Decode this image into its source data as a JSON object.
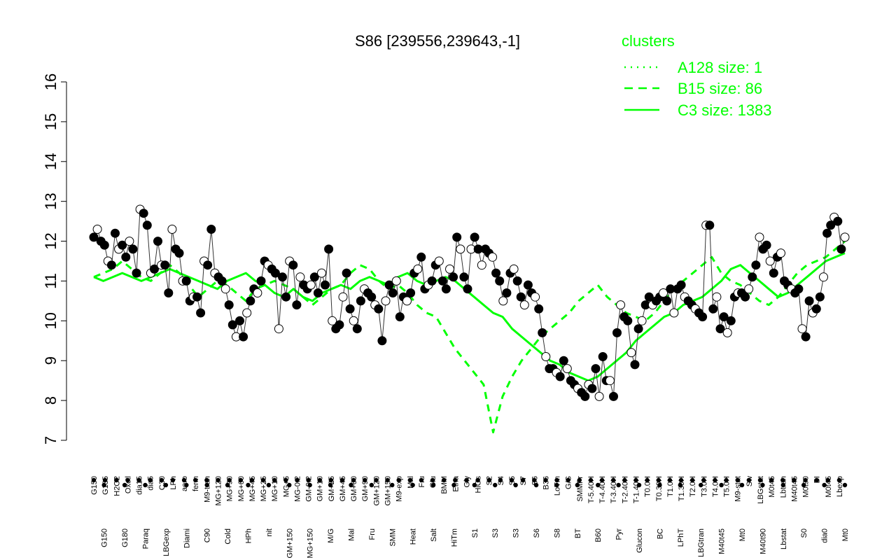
{
  "chart_data": {
    "type": "line",
    "title": "S86 [239556,239643,-1]",
    "ylim": [
      7,
      16
    ],
    "y_ticks": [
      7,
      8,
      9,
      10,
      11,
      12,
      13,
      14,
      15,
      16
    ],
    "grid": false,
    "legend_position": "top-right",
    "legend": {
      "title": "clusters",
      "entries": [
        {
          "label": "A128 size: 1",
          "style": "dotted"
        },
        {
          "label": "B15 size: 86",
          "style": "dashed"
        },
        {
          "label": "C3 size: 1383",
          "style": "solid"
        }
      ]
    },
    "x_labels_top": [
      "G150",
      "G135",
      "H2O2",
      "Oxctl",
      "dia15",
      "dia5",
      "C30",
      "LPh",
      "aero",
      "ferm",
      "M9-tran",
      "MG+120",
      "MG+90",
      "MG+60",
      "MG+45",
      "MG+25",
      "MG+10",
      "MG+5",
      "MG-0.2",
      "GM-0.2",
      "GM+10",
      "GM+25",
      "GM+45",
      "GM+60",
      "GM+90",
      "GM+120",
      "GM+150",
      "M9-exp",
      "Mal",
      "Fru",
      "Glu",
      "BMM",
      "Etha",
      "Gly",
      "HiOs",
      "S2",
      "S4",
      "S5",
      "S7",
      "S6",
      "B36",
      "LoTm",
      "G/S",
      "SMMPr",
      "T-5.40H",
      "T-4.40H",
      "T-3.40H",
      "T-2.40H",
      "T-1.40H",
      "T0.0H",
      "T0.30H",
      "T1.0H",
      "T1.30H",
      "T2.0H",
      "T3.0H",
      "T4.0H",
      "T5.0H",
      "M9-stat",
      "Sw",
      "LBGstat",
      "M0t45",
      "Lbtran",
      "M40t45",
      "M0t90",
      "BI",
      "M0t45",
      "Lbexp"
    ],
    "x_labels_bottom": [
      "G150",
      "G180",
      "Paraq",
      "LBGexp",
      "Diami",
      "C90",
      "Cold",
      "HPh",
      "nit",
      "GM+150",
      "MG+150",
      "M/G",
      "Mal",
      "Fru",
      "SMM",
      "Heat",
      "Salt",
      "HiTm",
      "S1",
      "S3",
      "S3",
      "S6",
      "S8",
      "BT",
      "B60",
      "Pyr",
      "Glucon",
      "BC",
      "LPhT",
      "LBGtran",
      "M40t45",
      "Mt0",
      "M40t90",
      "Lbstat",
      "S0",
      "dia0",
      "Mt0"
    ],
    "series": [
      {
        "name": "C3 size: 1383",
        "style": "solid",
        "values": [
          11.1,
          11.0,
          11.1,
          11.2,
          11.1,
          11.0,
          11.1,
          11.2,
          11.3,
          11.2,
          11.1,
          11.0,
          10.9,
          10.8,
          11.0,
          11.1,
          11.2,
          11.0,
          10.9,
          10.7,
          10.6,
          10.8,
          10.6,
          10.5,
          10.7,
          10.8,
          10.9,
          10.8,
          11.0,
          11.1,
          11.0,
          10.9,
          11.1,
          11.2,
          11.0,
          10.9,
          11.0,
          11.1,
          11.0,
          10.8,
          10.6,
          10.4,
          10.2,
          10.1,
          9.8,
          9.6,
          9.4,
          9.2,
          9.0,
          8.9,
          8.7,
          8.6,
          8.5,
          8.6,
          8.8,
          9.0,
          9.2,
          9.5,
          9.7,
          9.9,
          10.1,
          10.2,
          10.4,
          10.5,
          10.6,
          10.8,
          11.0,
          11.3,
          11.4,
          11.2,
          11.0,
          10.8,
          10.6,
          10.7,
          10.9,
          11.1,
          11.3,
          11.5,
          11.6,
          11.7
        ]
      },
      {
        "name": "B15 size: 86",
        "style": "dashed",
        "values": [
          11.1,
          11.2,
          11.3,
          11.5,
          11.3,
          11.1,
          11.0,
          11.2,
          11.4,
          11.2,
          10.9,
          10.6,
          10.8,
          11.0,
          10.9,
          10.7,
          10.5,
          10.8,
          10.9,
          11.0,
          10.9,
          10.8,
          10.6,
          10.4,
          10.6,
          10.8,
          10.9,
          11.2,
          11.4,
          11.3,
          11.0,
          10.8,
          10.9,
          10.7,
          10.4,
          10.2,
          10.1,
          9.7,
          9.3,
          9.0,
          8.7,
          8.4,
          7.2,
          8.1,
          8.6,
          9.0,
          9.3,
          9.6,
          9.8,
          10.0,
          10.2,
          10.5,
          10.7,
          10.9,
          10.6,
          10.4,
          10.2,
          10.1,
          10.0,
          10.2,
          10.5,
          10.8,
          11.0,
          11.2,
          11.4,
          11.6,
          11.2,
          11.0,
          10.9,
          10.7,
          10.5,
          10.4,
          10.6,
          10.9,
          11.2,
          11.4,
          11.5,
          11.6,
          11.8,
          12.0
        ]
      }
    ],
    "points": [
      12.1,
      12.3,
      12.0,
      11.9,
      11.5,
      11.4,
      12.2,
      11.8,
      11.9,
      11.6,
      12.0,
      11.8,
      11.2,
      12.8,
      12.7,
      12.4,
      11.2,
      11.3,
      12.0,
      11.4,
      11.4,
      10.7,
      12.3,
      11.8,
      11.7,
      11.0,
      11.0,
      10.5,
      10.6,
      10.6,
      10.2,
      11.5,
      11.4,
      12.3,
      11.2,
      11.1,
      11.0,
      10.8,
      10.4,
      9.9,
      9.6,
      10.0,
      9.6,
      10.2,
      10.5,
      10.8,
      10.7,
      11.0,
      11.5,
      11.4,
      11.3,
      11.2,
      9.8,
      11.1,
      10.6,
      11.5,
      11.4,
      10.4,
      11.1,
      10.9,
      10.8,
      10.9,
      11.1,
      10.7,
      11.2,
      10.9,
      11.8,
      10.0,
      9.8,
      9.9,
      10.6,
      11.2,
      10.3,
      10.0,
      9.8,
      10.5,
      10.8,
      10.7,
      10.6,
      10.4,
      10.3,
      9.5,
      10.5,
      10.9,
      10.7,
      11.0,
      10.1,
      10.6,
      10.5,
      10.7,
      11.2,
      11.3,
      11.6,
      10.8,
      10.9,
      11.0,
      11.4,
      11.5,
      11.0,
      10.8,
      11.3,
      11.1,
      12.1,
      11.8,
      11.1,
      10.8,
      11.8,
      12.1,
      11.8,
      11.4,
      11.8,
      11.7,
      11.6,
      11.2,
      11.0,
      10.5,
      10.7,
      11.2,
      11.3,
      11.0,
      10.6,
      10.4,
      10.9,
      10.7,
      10.6,
      10.3,
      9.7,
      9.1,
      8.8,
      8.8,
      8.7,
      8.6,
      9.0,
      8.8,
      8.5,
      8.4,
      8.3,
      8.2,
      8.1,
      8.4,
      8.3,
      8.8,
      8.1,
      9.1,
      8.5,
      8.5,
      8.1,
      9.7,
      10.4,
      10.1,
      10.0,
      9.2,
      8.9,
      9.8,
      10.0,
      10.4,
      10.6,
      10.4,
      10.5,
      10.6,
      10.7,
      10.5,
      10.8,
      10.2,
      10.8,
      10.9,
      10.6,
      10.5,
      10.4,
      10.3,
      10.2,
      10.1,
      12.4,
      12.4,
      10.3,
      10.6,
      9.8,
      10.1,
      9.7,
      10.0,
      10.6,
      10.7,
      10.7,
      10.6,
      10.8,
      11.1,
      11.4,
      12.1,
      11.8,
      11.9,
      11.5,
      11.2,
      11.6,
      11.7,
      11.0,
      10.9,
      10.8,
      10.7,
      10.8,
      9.8,
      9.6,
      10.5,
      10.2,
      10.3,
      10.6,
      11.1,
      12.2,
      12.4,
      12.6,
      12.5,
      11.8,
      12.1
    ]
  }
}
